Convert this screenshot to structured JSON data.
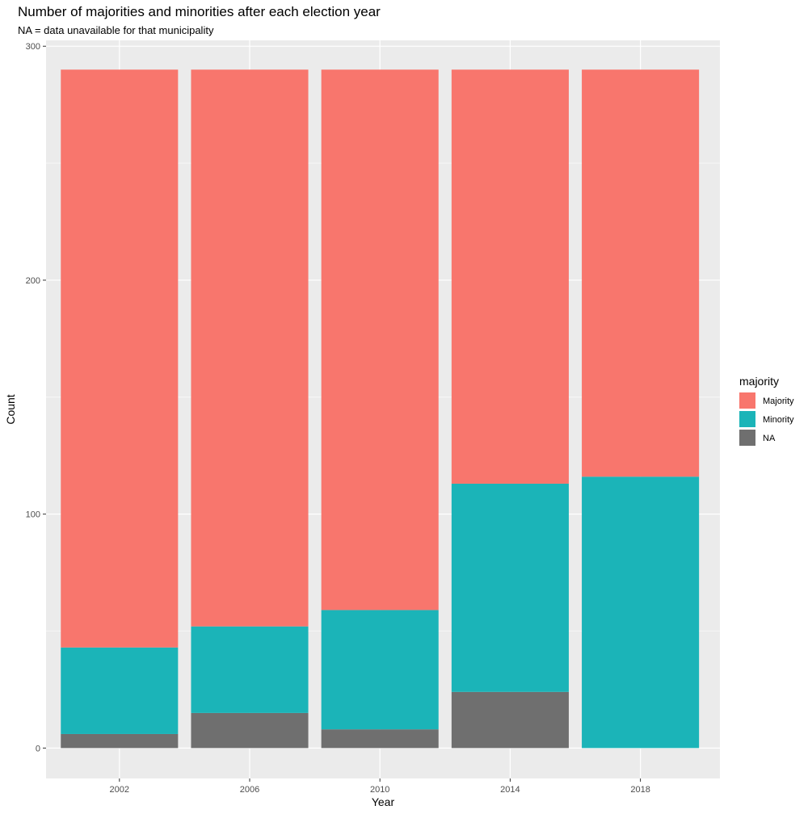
{
  "chart_data": {
    "type": "bar",
    "stacked": true,
    "title": "Number of majorities and minorities after each election year",
    "subtitle": "NA = data unavailable for that municipality",
    "xlabel": "Year",
    "ylabel": "Count",
    "ylim": [
      -13,
      300
    ],
    "yticks": [
      0,
      100,
      200,
      300
    ],
    "grid": true,
    "legend_position": "right",
    "legend_title": "majority",
    "categories": [
      "2002",
      "2006",
      "2010",
      "2014",
      "2018"
    ],
    "series": [
      {
        "name": "Majority",
        "color": "#F8766D",
        "values": [
          247,
          238,
          231,
          177,
          174
        ]
      },
      {
        "name": "Minority",
        "color": "#1BB4B8",
        "values": [
          37,
          37,
          51,
          89,
          116
        ]
      },
      {
        "name": "NA",
        "color": "#6F6F6F",
        "values": [
          6,
          15,
          8,
          24,
          0
        ]
      }
    ],
    "stack_order_bottom_to_top": [
      "NA",
      "Minority",
      "Majority"
    ]
  }
}
